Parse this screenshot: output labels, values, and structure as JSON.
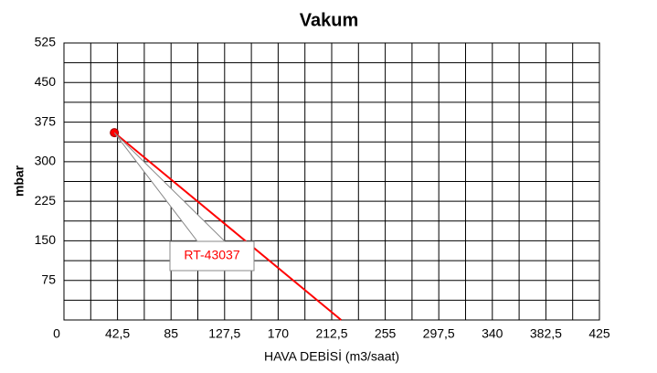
{
  "chart_data": {
    "type": "line",
    "title": "Vakum",
    "x_label": "HAVA DEBİSİ (m3/saat)",
    "y_label": "mbar",
    "x": [
      40,
      220
    ],
    "series": [
      {
        "name": "RT-43037",
        "color": "#ff0000",
        "values": [
          355,
          0
        ]
      }
    ],
    "annotation": "RT-43037",
    "xlim": [
      0,
      425
    ],
    "xticks": [
      0,
      {
        "value": 42.5,
        "label": "42,5"
      },
      85,
      {
        "value": 127.5,
        "label": "127,5"
      },
      170,
      {
        "value": 212.5,
        "label": "212,5"
      },
      255,
      {
        "value": 297.5,
        "label": "297,5"
      },
      340,
      {
        "value": 382.5,
        "label": "382,5"
      },
      425
    ],
    "ylim": [
      0,
      525
    ],
    "yticks": [
      75,
      150,
      225,
      300,
      375,
      450,
      525
    ],
    "grid": true
  }
}
